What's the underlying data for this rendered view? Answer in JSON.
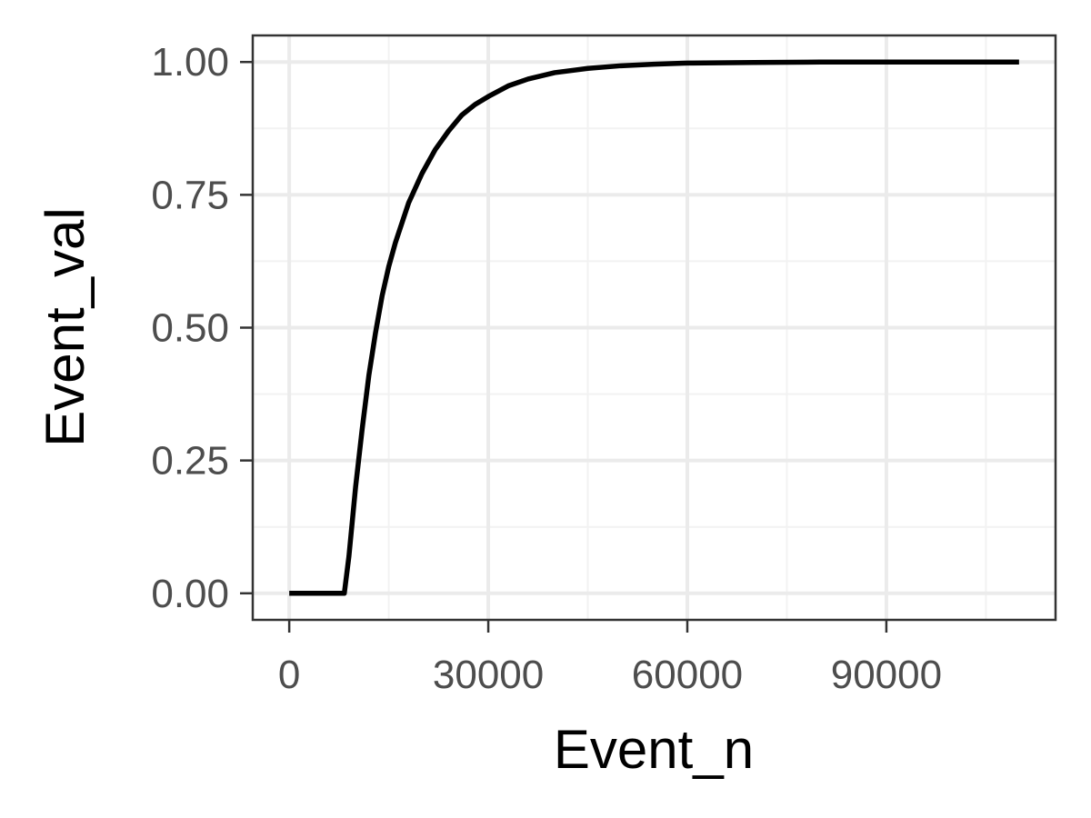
{
  "chart_data": {
    "type": "line",
    "title": "",
    "xlabel": "Event_n",
    "ylabel": "Event_val",
    "xlim": [
      -5500,
      115500
    ],
    "ylim": [
      -0.05,
      1.05
    ],
    "x_ticks": [
      0,
      30000,
      60000,
      90000
    ],
    "x_tick_labels": [
      "0",
      "30000",
      "60000",
      "90000"
    ],
    "y_ticks": [
      0,
      0.25,
      0.5,
      0.75,
      1
    ],
    "y_tick_labels": [
      "0.00",
      "0.25",
      "0.50",
      "0.75",
      "1.00"
    ],
    "x_minor_ticks": [
      15000,
      45000,
      75000,
      105000
    ],
    "y_minor_ticks": [
      0.125,
      0.375,
      0.625,
      0.875
    ],
    "grid": true,
    "legend": "none",
    "series": [
      {
        "color": "#000000",
        "x": [
          0,
          8300,
          9000,
          10000,
          11000,
          12000,
          13000,
          14000,
          15000,
          16000,
          18000,
          20000,
          22000,
          24000,
          26000,
          28000,
          30000,
          33000,
          36000,
          40000,
          45000,
          50000,
          55000,
          60000,
          70000,
          80000,
          90000,
          100000,
          110000
        ],
        "y": [
          0,
          0,
          0.07,
          0.2,
          0.31,
          0.41,
          0.49,
          0.56,
          0.615,
          0.66,
          0.735,
          0.79,
          0.835,
          0.87,
          0.9,
          0.92,
          0.935,
          0.955,
          0.968,
          0.98,
          0.988,
          0.993,
          0.996,
          0.998,
          0.999,
          1,
          1,
          1,
          1
        ]
      }
    ]
  },
  "colors": {
    "panel_border": "#333333",
    "grid_major": "#ebebeb",
    "grid_minor": "#f2f2f2",
    "tick_text": "#4d4d4d",
    "axis_title": "#000000",
    "line": "#000000"
  }
}
